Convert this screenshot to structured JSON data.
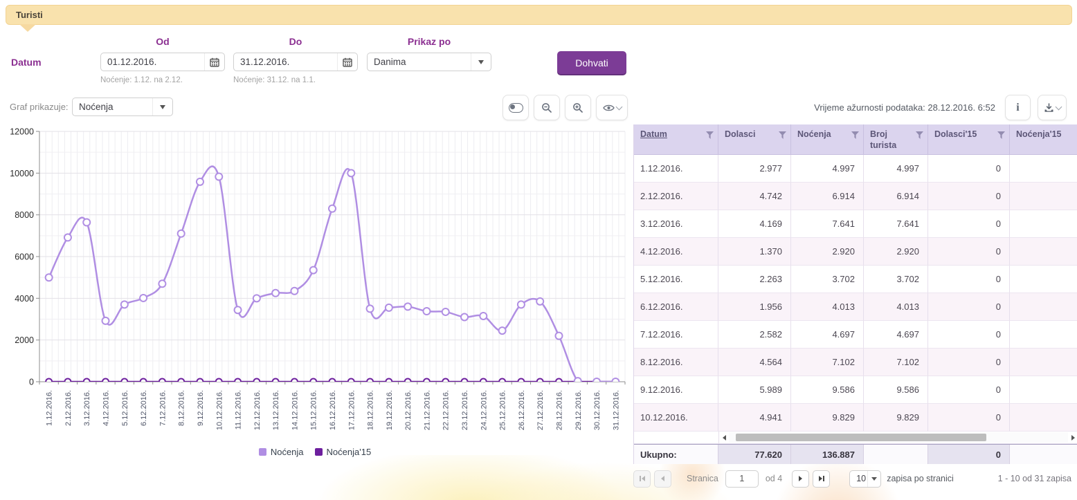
{
  "header": {
    "title": "Turisti"
  },
  "filters": {
    "datum_label": "Datum",
    "od_label": "Od",
    "od_value": "01.12.2016.",
    "od_note": "Noćenje: 1.12. na 2.12.",
    "do_label": "Do",
    "do_value": "31.12.2016.",
    "do_note": "Noćenje: 31.12. na 1.1.",
    "prikaz_label": "Prikaz po",
    "prikaz_value": "Danima",
    "fetch_button": "Dohvati"
  },
  "chart_controls": {
    "graf_label": "Graf prikazuje:",
    "graf_value": "Noćenja"
  },
  "table_tools": {
    "updated_text": "Vrijeme ažurnosti podataka: 28.12.2016. 6:52",
    "info_label": "i"
  },
  "chart_data": {
    "type": "line",
    "x": [
      "1.12.2016.",
      "2.12.2016.",
      "3.12.2016.",
      "4.12.2016.",
      "5.12.2016.",
      "6.12.2016.",
      "7.12.2016.",
      "8.12.2016.",
      "9.12.2016.",
      "10.12.2016.",
      "11.12.2016.",
      "12.12.2016.",
      "13.12.2016.",
      "14.12.2016.",
      "15.12.2016.",
      "16.12.2016.",
      "17.12.2016.",
      "18.12.2016.",
      "19.12.2016.",
      "20.12.2016.",
      "21.12.2016.",
      "22.12.2016.",
      "23.12.2016.",
      "24.12.2016.",
      "25.12.2016.",
      "26.12.2016.",
      "27.12.2016.",
      "28.12.2016.",
      "29.12.2016.",
      "30.12.2016.",
      "31.12.2016."
    ],
    "series": [
      {
        "name": "Noćenja",
        "color": "#b08ee3",
        "values": [
          4997,
          6914,
          7641,
          2920,
          3702,
          4013,
          4697,
          7102,
          9586,
          9829,
          3440,
          4000,
          4250,
          4350,
          5350,
          8300,
          10000,
          3500,
          3550,
          3600,
          3380,
          3350,
          3100,
          3150,
          2450,
          3700,
          3850,
          2200,
          30,
          0,
          0
        ]
      },
      {
        "name": "Noćenja'15",
        "color": "#6d1f9e",
        "values": [
          0,
          0,
          0,
          0,
          0,
          0,
          0,
          0,
          0,
          0,
          0,
          0,
          0,
          0,
          0,
          0,
          0,
          0,
          0,
          0,
          0,
          0,
          0,
          0,
          0,
          0,
          0,
          0,
          0,
          0,
          0
        ]
      }
    ],
    "ylim": [
      0,
      12000
    ],
    "yticks": [
      0,
      2000,
      4000,
      6000,
      8000,
      10000,
      12000
    ],
    "grid": true,
    "legend_position": "bottom"
  },
  "table": {
    "columns": [
      "Datum",
      "Dolasci",
      "Noćenja",
      "Broj turista",
      "Dolasci'15",
      "Noćenja'15"
    ],
    "sorted_column": "Datum",
    "rows": [
      [
        "1.12.2016.",
        "2.977",
        "4.997",
        "4.997",
        "0",
        ""
      ],
      [
        "2.12.2016.",
        "4.742",
        "6.914",
        "6.914",
        "0",
        ""
      ],
      [
        "3.12.2016.",
        "4.169",
        "7.641",
        "7.641",
        "0",
        ""
      ],
      [
        "4.12.2016.",
        "1.370",
        "2.920",
        "2.920",
        "0",
        ""
      ],
      [
        "5.12.2016.",
        "2.263",
        "3.702",
        "3.702",
        "0",
        ""
      ],
      [
        "6.12.2016.",
        "1.956",
        "4.013",
        "4.013",
        "0",
        ""
      ],
      [
        "7.12.2016.",
        "2.582",
        "4.697",
        "4.697",
        "0",
        ""
      ],
      [
        "8.12.2016.",
        "4.564",
        "7.102",
        "7.102",
        "0",
        ""
      ],
      [
        "9.12.2016.",
        "5.989",
        "9.586",
        "9.586",
        "0",
        ""
      ],
      [
        "10.12.2016.",
        "4.941",
        "9.829",
        "9.829",
        "0",
        ""
      ]
    ],
    "totals": {
      "label": "Ukupno:",
      "values": [
        "77.620",
        "136.887",
        "",
        "0",
        ""
      ]
    }
  },
  "pagination": {
    "page_label": "Stranica",
    "page_value": "1",
    "of_label": "od 4",
    "page_size": "10",
    "page_size_label": "zapisa po stranici",
    "range_label": "1 - 10 od 31 zapisa"
  }
}
